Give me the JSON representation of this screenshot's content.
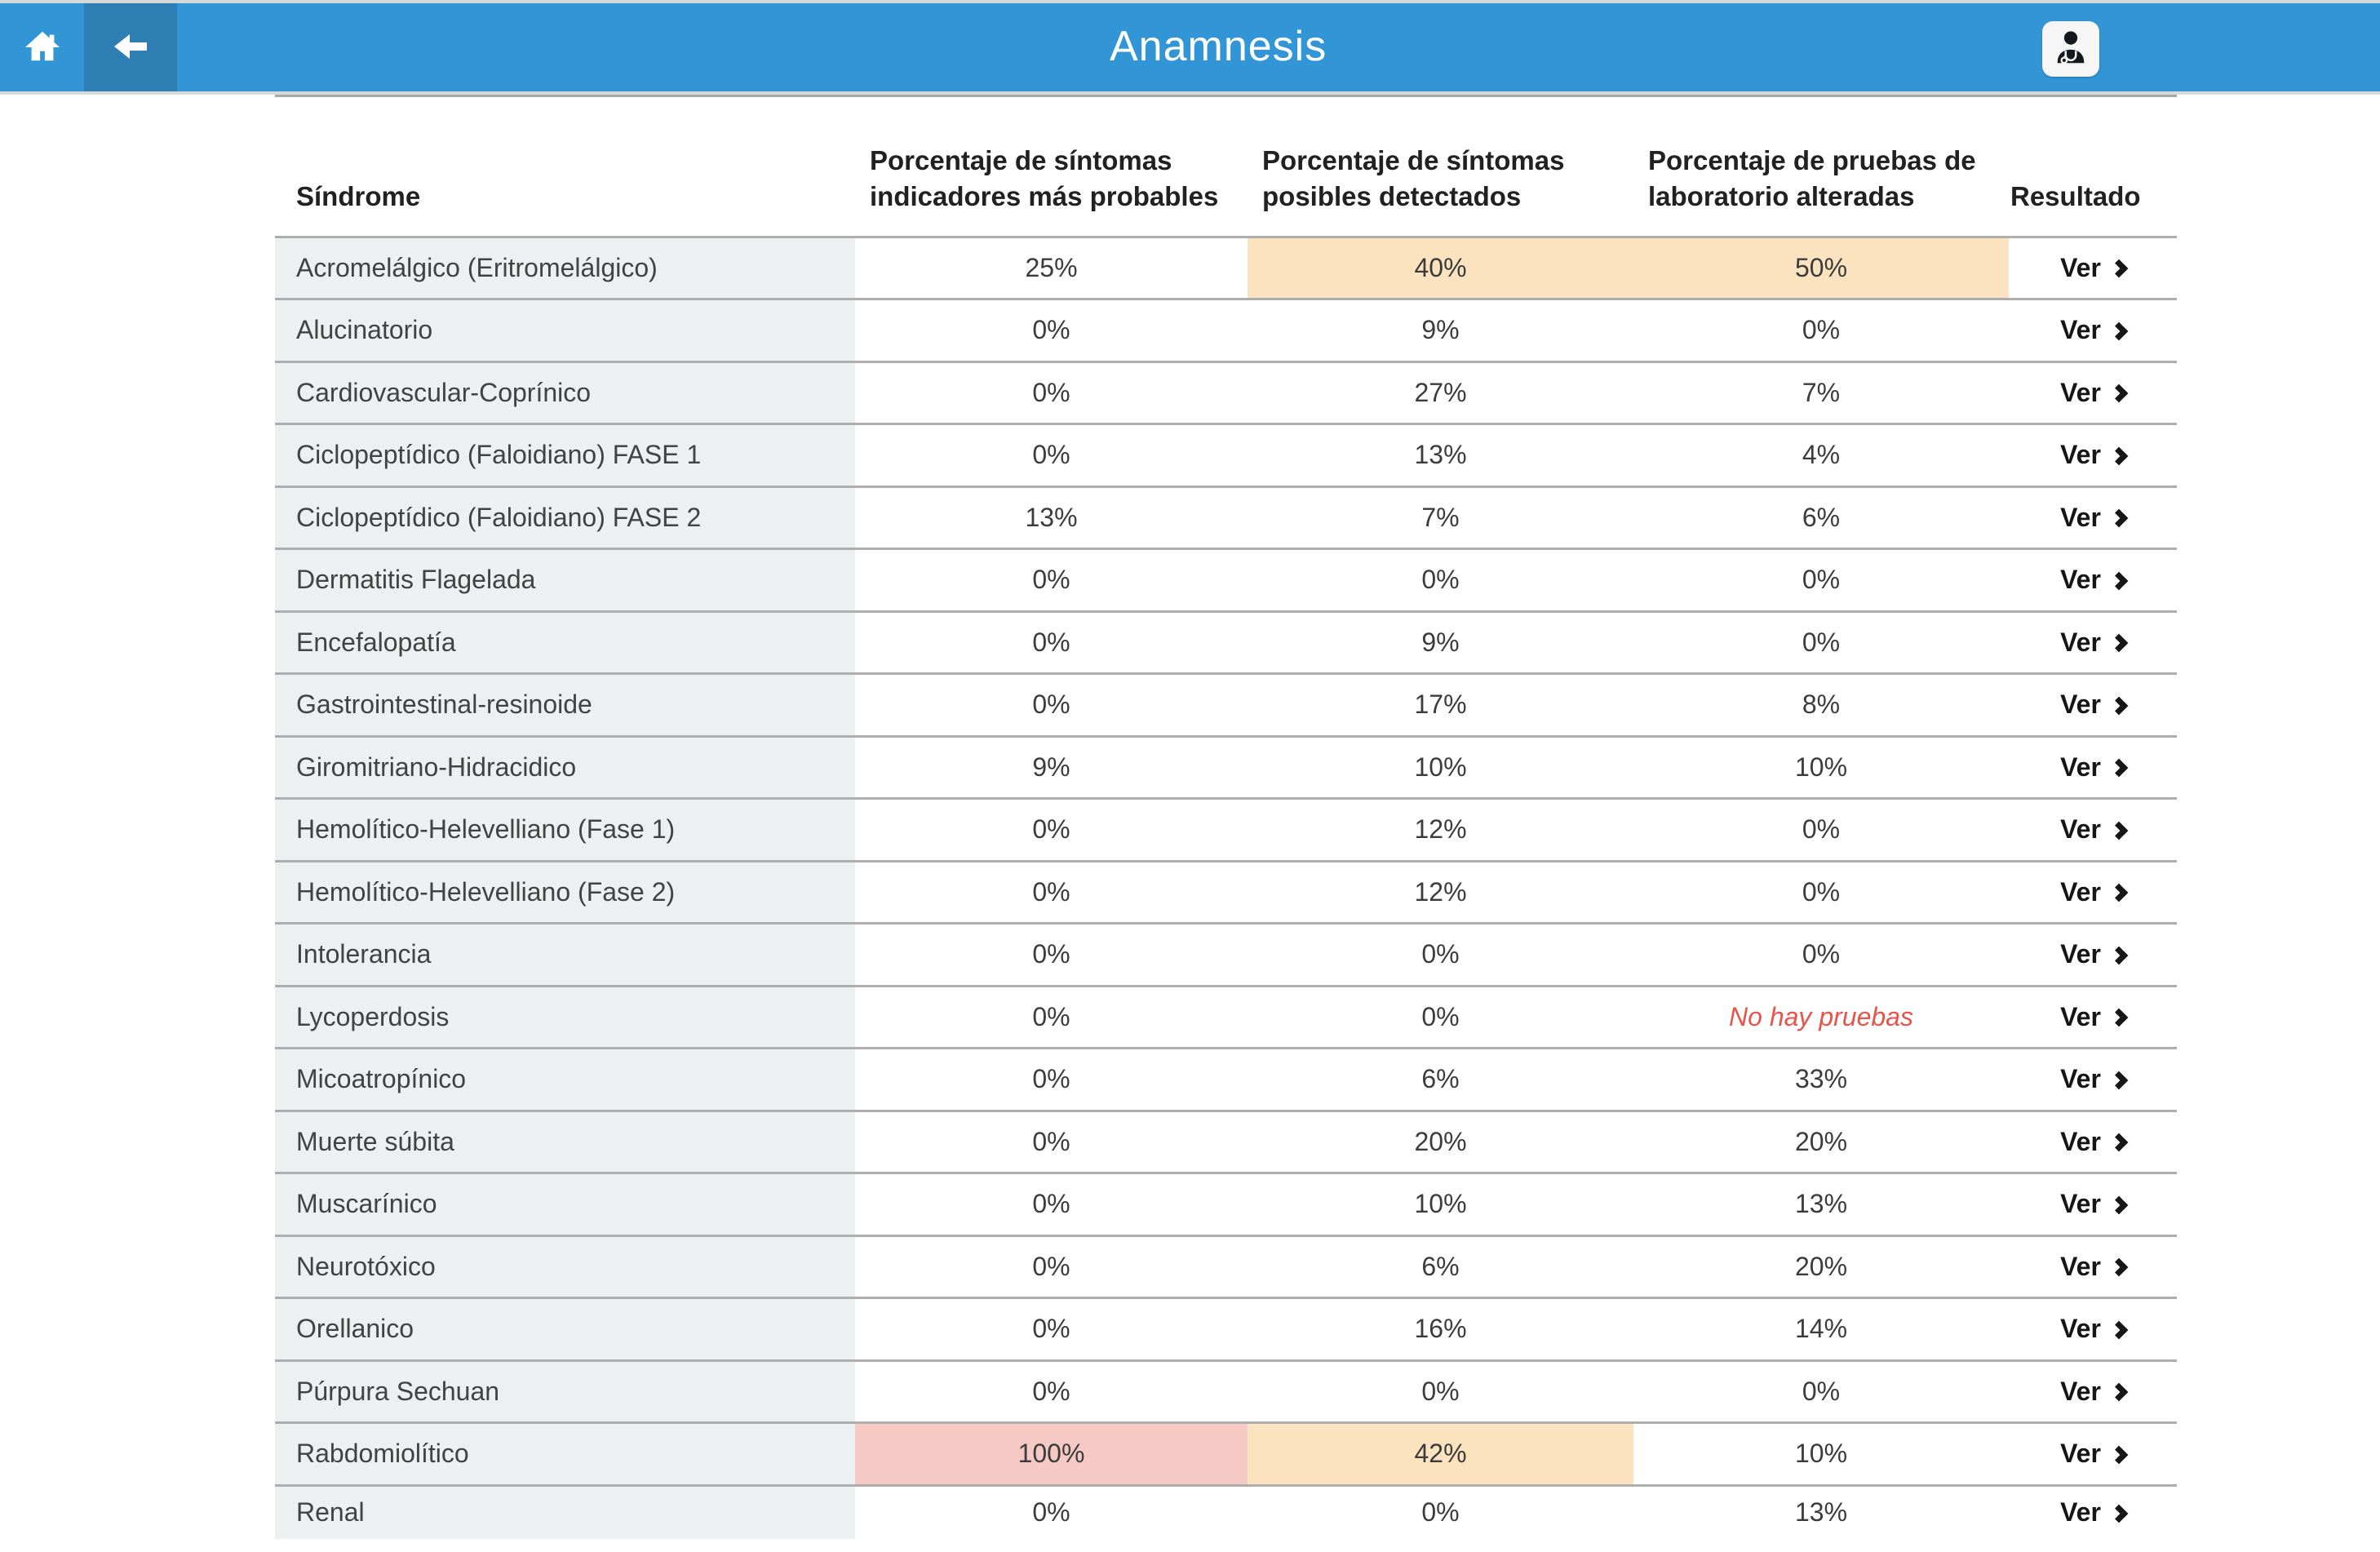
{
  "header": {
    "title": "Anamnesis",
    "home_button": {
      "icon": "home-icon"
    },
    "back_button": {
      "icon": "arrow-left-icon"
    },
    "profile_button": {
      "icon": "doctor-icon"
    }
  },
  "colors": {
    "header_blue": "#3296d6",
    "back_button_blue": "#2d7fb3",
    "highlight_orange": "#fbe3c0",
    "highlight_pink": "#f5c9c4",
    "alert_red": "#e8534a",
    "syndrome_column_bg": "#edf0f0",
    "row_border_gray": "#adafaf"
  },
  "table": {
    "columns": [
      {
        "label": "Síndrome"
      },
      {
        "label": "Porcentaje de síntomas indicadores más probables"
      },
      {
        "label": "Porcentaje de síntomas posibles detectados"
      },
      {
        "label": "Porcentaje de pruebas de laboratorio alteradas"
      },
      {
        "label": "Resultado"
      }
    ],
    "result_label": "Ver",
    "rows": [
      {
        "syndrome": "Acromelálgico (Eritromelálgico)",
        "values": [
          {
            "text": "25%"
          },
          {
            "text": "40%",
            "highlight": "orange"
          },
          {
            "text": "50%",
            "highlight": "orange"
          }
        ]
      },
      {
        "syndrome": "Alucinatorio",
        "values": [
          {
            "text": "0%"
          },
          {
            "text": "9%"
          },
          {
            "text": "0%"
          }
        ]
      },
      {
        "syndrome": "Cardiovascular-Coprínico",
        "values": [
          {
            "text": "0%"
          },
          {
            "text": "27%"
          },
          {
            "text": "7%"
          }
        ]
      },
      {
        "syndrome": "Ciclopeptídico (Faloidiano) FASE 1",
        "values": [
          {
            "text": "0%"
          },
          {
            "text": "13%"
          },
          {
            "text": "4%"
          }
        ]
      },
      {
        "syndrome": "Ciclopeptídico (Faloidiano) FASE 2",
        "values": [
          {
            "text": "13%"
          },
          {
            "text": "7%"
          },
          {
            "text": "6%"
          }
        ]
      },
      {
        "syndrome": "Dermatitis Flagelada",
        "values": [
          {
            "text": "0%"
          },
          {
            "text": "0%"
          },
          {
            "text": "0%"
          }
        ]
      },
      {
        "syndrome": "Encefalopatía",
        "values": [
          {
            "text": "0%"
          },
          {
            "text": "9%"
          },
          {
            "text": "0%"
          }
        ]
      },
      {
        "syndrome": "Gastrointestinal-resinoide",
        "values": [
          {
            "text": "0%"
          },
          {
            "text": "17%"
          },
          {
            "text": "8%"
          }
        ]
      },
      {
        "syndrome": "Giromitriano-Hidracidico",
        "values": [
          {
            "text": "9%"
          },
          {
            "text": "10%"
          },
          {
            "text": "10%"
          }
        ]
      },
      {
        "syndrome": "Hemolítico-Helevelliano (Fase 1)",
        "values": [
          {
            "text": "0%"
          },
          {
            "text": "12%"
          },
          {
            "text": "0%"
          }
        ]
      },
      {
        "syndrome": "Hemolítico-Helevelliano (Fase 2)",
        "values": [
          {
            "text": "0%"
          },
          {
            "text": "12%"
          },
          {
            "text": "0%"
          }
        ]
      },
      {
        "syndrome": "Intolerancia",
        "values": [
          {
            "text": "0%"
          },
          {
            "text": "0%"
          },
          {
            "text": "0%"
          }
        ]
      },
      {
        "syndrome": "Lycoperdosis",
        "values": [
          {
            "text": "0%"
          },
          {
            "text": "0%"
          },
          {
            "text": "No hay pruebas",
            "style": "no-tests"
          }
        ]
      },
      {
        "syndrome": "Micoatropínico",
        "values": [
          {
            "text": "0%"
          },
          {
            "text": "6%"
          },
          {
            "text": "33%"
          }
        ]
      },
      {
        "syndrome": "Muerte súbita",
        "values": [
          {
            "text": "0%"
          },
          {
            "text": "20%"
          },
          {
            "text": "20%"
          }
        ]
      },
      {
        "syndrome": "Muscarínico",
        "values": [
          {
            "text": "0%"
          },
          {
            "text": "10%"
          },
          {
            "text": "13%"
          }
        ]
      },
      {
        "syndrome": "Neurotóxico",
        "values": [
          {
            "text": "0%"
          },
          {
            "text": "6%"
          },
          {
            "text": "20%"
          }
        ]
      },
      {
        "syndrome": "Orellanico",
        "values": [
          {
            "text": "0%"
          },
          {
            "text": "16%"
          },
          {
            "text": "14%"
          }
        ]
      },
      {
        "syndrome": "Púrpura Sechuan",
        "values": [
          {
            "text": "0%"
          },
          {
            "text": "0%"
          },
          {
            "text": "0%"
          }
        ]
      },
      {
        "syndrome": "Rabdomiolítico",
        "values": [
          {
            "text": "100%",
            "highlight": "pink"
          },
          {
            "text": "42%",
            "highlight": "orange"
          },
          {
            "text": "10%"
          }
        ]
      },
      {
        "syndrome": "Renal",
        "values": [
          {
            "text": "0%"
          },
          {
            "text": "0%"
          },
          {
            "text": "13%"
          }
        ]
      }
    ]
  }
}
